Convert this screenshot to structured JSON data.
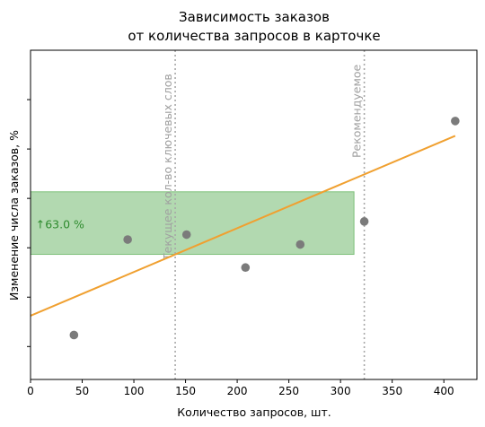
{
  "chart_data": {
    "type": "scatter",
    "title_lines": [
      "Зависимость заказов",
      "от количества запросов в карточке"
    ],
    "xlabel": "Количество запросов, шт.",
    "ylabel": "Изменение числа заказов, %",
    "xlim": [
      0,
      432
    ],
    "ylim": [
      -80,
      120
    ],
    "x_ticks": [
      0,
      50,
      100,
      150,
      200,
      250,
      300,
      350,
      400
    ],
    "y_ticks": [
      -60,
      -30,
      0,
      30,
      60,
      90
    ],
    "points": [
      {
        "x": 42,
        "y": -53
      },
      {
        "x": 94,
        "y": 5
      },
      {
        "x": 151,
        "y": 8
      },
      {
        "x": 208,
        "y": -12
      },
      {
        "x": 261,
        "y": 2
      },
      {
        "x": 323,
        "y": 16
      },
      {
        "x": 411,
        "y": 77
      }
    ],
    "trend_line": {
      "x": [
        0,
        411
      ],
      "y": [
        -41.3,
        68.0
      ]
    },
    "vertical_lines": [
      {
        "x": 140,
        "label": "Текущее кол-во ключевых слов"
      },
      {
        "x": 323,
        "label": "Рекомендуемое"
      }
    ],
    "highlight_band": {
      "y": [
        -4,
        34
      ],
      "x_end": 313
    },
    "annotation": {
      "text": "↑63.0 %",
      "x": 5,
      "y": 14
    },
    "colors": {
      "points": "#7b7b7b",
      "trend": "#f0a030",
      "band": "#b2d9b0",
      "band_edge": "#7ec07a",
      "vline": "#a8a8a8",
      "annotation": "#2e8b2e"
    }
  }
}
